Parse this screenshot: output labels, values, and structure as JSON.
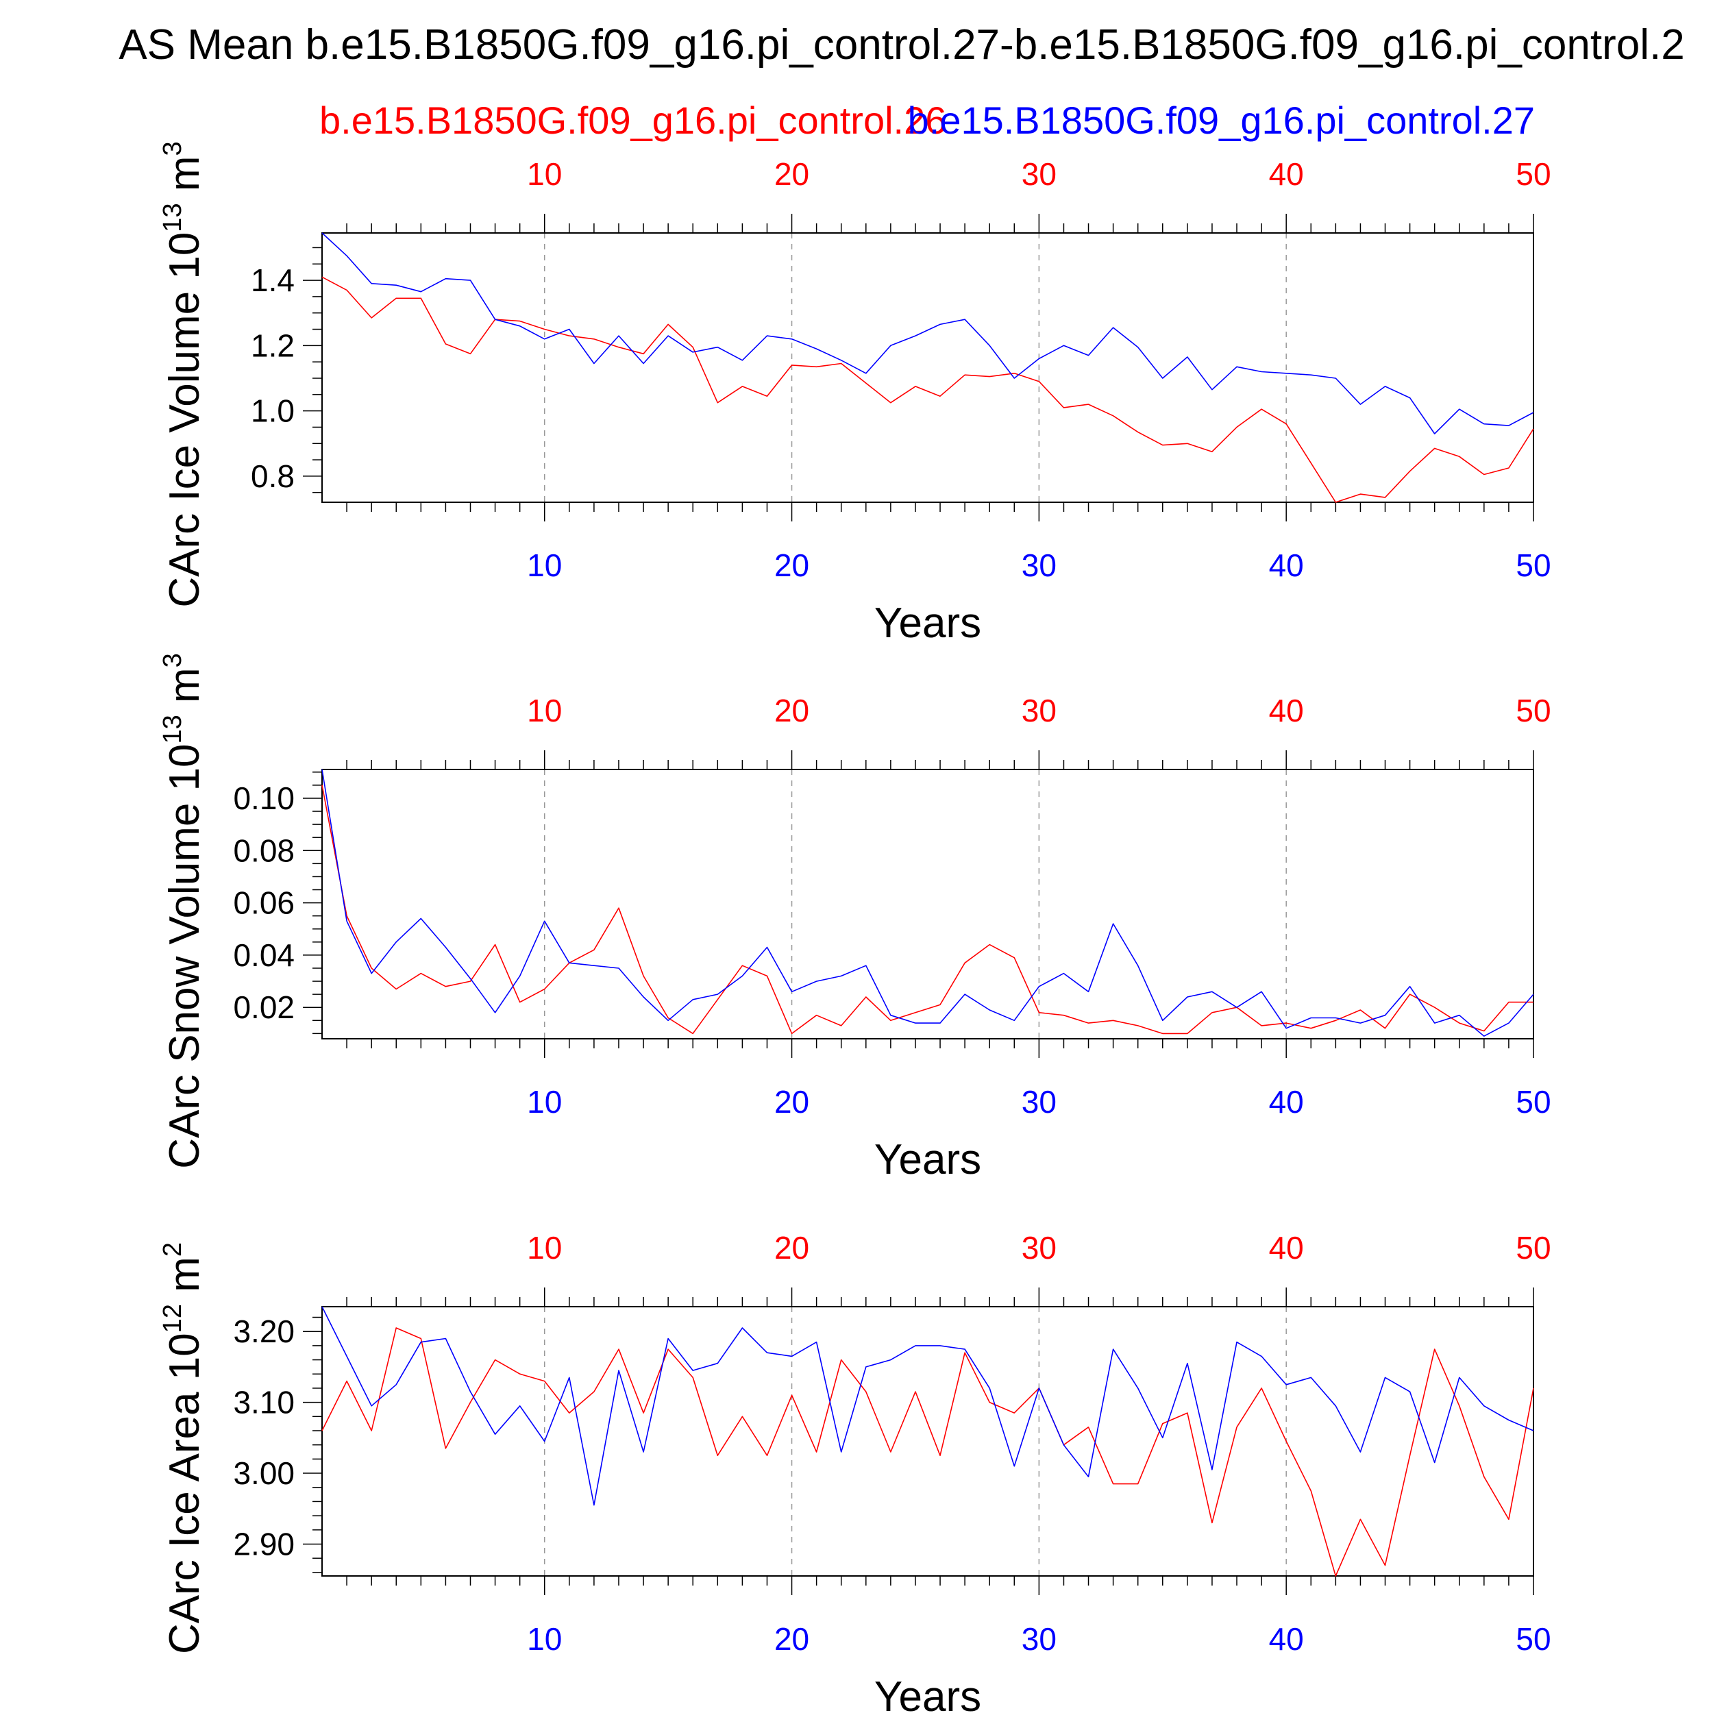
{
  "title": "AS Mean b.e15.B1850G.f09_g16.pi_control.27-b.e15.B1850G.f09_g16.pi_control.2",
  "legend": {
    "red_label": "b.e15.B1850G.f09_g16.pi_control.26",
    "blue_label": "b.e15.B1850G.f09_g16.pi_control.27"
  },
  "colors": {
    "red": "#ff0000",
    "blue": "#0000ff",
    "axis": "#000000",
    "grid": "#999999"
  },
  "chart_data": [
    {
      "type": "line",
      "ylabel": "CArc Ice Volume 10",
      "ylabel_exp": "13",
      "ylabel_unit": " m",
      "ylabel_unit_exp": "3",
      "xlabel": "Years",
      "xlim": [
        1,
        50
      ],
      "ylim": [
        0.72,
        1.545
      ],
      "yticks": [
        0.8,
        1.0,
        1.2,
        1.4
      ],
      "ytick_labels": [
        "0.8",
        "1.0",
        "1.2",
        "1.4"
      ],
      "yminor_step": 0.05,
      "xticks": [
        10,
        20,
        30,
        40,
        50
      ],
      "xtick_labels": [
        "10",
        "20",
        "30",
        "40",
        "50"
      ],
      "grid": "vertical dashed at major x ticks",
      "series": [
        {
          "color": "red",
          "values": [
            1.41,
            1.37,
            1.285,
            1.345,
            1.345,
            1.205,
            1.175,
            1.28,
            1.275,
            1.25,
            1.23,
            1.22,
            1.195,
            1.175,
            1.265,
            1.195,
            1.025,
            1.075,
            1.045,
            1.14,
            1.135,
            1.145,
            1.085,
            1.025,
            1.075,
            1.045,
            1.11,
            1.105,
            1.115,
            1.09,
            1.01,
            1.02,
            0.985,
            0.935,
            0.895,
            0.9,
            0.875,
            0.95,
            1.005,
            0.96,
            0.84,
            0.72,
            0.745,
            0.735,
            0.815,
            0.885,
            0.86,
            0.805,
            0.825,
            0.945
          ]
        },
        {
          "color": "blue",
          "values": [
            1.545,
            1.475,
            1.39,
            1.385,
            1.365,
            1.405,
            1.4,
            1.28,
            1.26,
            1.22,
            1.25,
            1.145,
            1.23,
            1.145,
            1.23,
            1.18,
            1.195,
            1.155,
            1.23,
            1.22,
            1.19,
            1.155,
            1.115,
            1.2,
            1.23,
            1.265,
            1.28,
            1.2,
            1.1,
            1.16,
            1.2,
            1.17,
            1.255,
            1.195,
            1.1,
            1.165,
            1.065,
            1.135,
            1.12,
            1.115,
            1.11,
            1.1,
            1.02,
            1.075,
            1.04,
            0.93,
            1.005,
            0.96,
            0.955,
            0.995
          ]
        }
      ]
    },
    {
      "type": "line",
      "ylabel": "CArc Snow Volume 10",
      "ylabel_exp": "13",
      "ylabel_unit": " m",
      "ylabel_unit_exp": "3",
      "xlabel": "Years",
      "xlim": [
        1,
        50
      ],
      "ylim": [
        0.008,
        0.111
      ],
      "yticks": [
        0.02,
        0.04,
        0.06,
        0.08,
        0.1
      ],
      "ytick_labels": [
        "0.02",
        "0.04",
        "0.06",
        "0.08",
        "0.10"
      ],
      "yminor_step": 0.005,
      "xticks": [
        10,
        20,
        30,
        40,
        50
      ],
      "xtick_labels": [
        "10",
        "20",
        "30",
        "40",
        "50"
      ],
      "grid": "vertical dashed at major x ticks",
      "series": [
        {
          "color": "red",
          "values": [
            0.105,
            0.055,
            0.035,
            0.027,
            0.033,
            0.028,
            0.03,
            0.044,
            0.022,
            0.027,
            0.037,
            0.042,
            0.058,
            0.032,
            0.016,
            0.01,
            0.023,
            0.036,
            0.032,
            0.01,
            0.017,
            0.013,
            0.024,
            0.015,
            0.018,
            0.021,
            0.037,
            0.044,
            0.039,
            0.018,
            0.017,
            0.014,
            0.015,
            0.013,
            0.01,
            0.01,
            0.018,
            0.02,
            0.013,
            0.014,
            0.012,
            0.015,
            0.019,
            0.012,
            0.025,
            0.02,
            0.014,
            0.011,
            0.022,
            0.022
          ]
        },
        {
          "color": "blue",
          "values": [
            0.111,
            0.053,
            0.033,
            0.045,
            0.054,
            0.043,
            0.031,
            0.018,
            0.032,
            0.053,
            0.037,
            0.036,
            0.035,
            0.024,
            0.015,
            0.023,
            0.025,
            0.032,
            0.043,
            0.026,
            0.03,
            0.032,
            0.036,
            0.017,
            0.014,
            0.014,
            0.025,
            0.019,
            0.015,
            0.028,
            0.033,
            0.026,
            0.052,
            0.036,
            0.015,
            0.024,
            0.026,
            0.02,
            0.026,
            0.012,
            0.016,
            0.016,
            0.014,
            0.017,
            0.028,
            0.014,
            0.017,
            0.009,
            0.014,
            0.025
          ]
        }
      ]
    },
    {
      "type": "line",
      "ylabel": "CArc Ice Area 10",
      "ylabel_exp": "12",
      "ylabel_unit": " m",
      "ylabel_unit_exp": "2",
      "xlabel": "Years",
      "xlim": [
        1,
        50
      ],
      "ylim": [
        2.855,
        3.235
      ],
      "yticks": [
        2.9,
        3.0,
        3.1,
        3.2
      ],
      "ytick_labels": [
        "2.90",
        "3.00",
        "3.10",
        "3.20"
      ],
      "yminor_step": 0.02,
      "xticks": [
        10,
        20,
        30,
        40,
        50
      ],
      "xtick_labels": [
        "10",
        "20",
        "30",
        "40",
        "50"
      ],
      "grid": "vertical dashed at major x ticks",
      "series": [
        {
          "color": "red",
          "values": [
            3.06,
            3.13,
            3.06,
            3.205,
            3.19,
            3.035,
            3.1,
            3.16,
            3.14,
            3.13,
            3.085,
            3.115,
            3.175,
            3.085,
            3.175,
            3.135,
            3.025,
            3.08,
            3.025,
            3.11,
            3.03,
            3.16,
            3.115,
            3.03,
            3.115,
            3.025,
            3.17,
            3.1,
            3.085,
            3.12,
            3.04,
            3.065,
            2.985,
            2.985,
            3.07,
            3.085,
            2.93,
            3.065,
            3.12,
            3.045,
            2.975,
            2.855,
            2.935,
            2.87,
            3.025,
            3.175,
            3.095,
            2.995,
            2.935,
            3.12
          ]
        },
        {
          "color": "blue",
          "values": [
            3.235,
            3.165,
            3.095,
            3.125,
            3.185,
            3.19,
            3.115,
            3.055,
            3.095,
            3.045,
            3.135,
            2.955,
            3.145,
            3.03,
            3.19,
            3.145,
            3.155,
            3.205,
            3.17,
            3.165,
            3.185,
            3.03,
            3.15,
            3.16,
            3.18,
            3.18,
            3.175,
            3.12,
            3.01,
            3.12,
            3.04,
            2.995,
            3.175,
            3.12,
            3.05,
            3.155,
            3.005,
            3.185,
            3.165,
            3.125,
            3.135,
            3.095,
            3.03,
            3.135,
            3.115,
            3.015,
            3.135,
            3.095,
            3.075,
            3.06
          ]
        }
      ]
    }
  ]
}
